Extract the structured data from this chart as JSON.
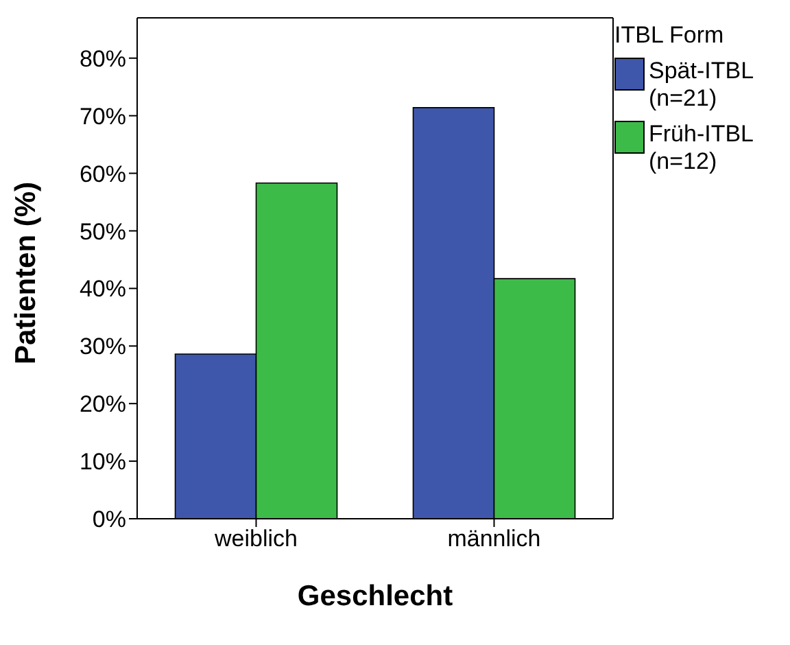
{
  "chart_data": {
    "type": "bar",
    "xlabel": "Geschlecht",
    "ylabel": "Patienten (%)",
    "legend_title": "ITBL Form",
    "categories": [
      "weiblich",
      "männlich"
    ],
    "series": [
      {
        "name": "Spät-ITBL (n=21)",
        "color": "#3f57ab",
        "values": [
          28.6,
          71.4
        ]
      },
      {
        "name": "Früh-ITBL (n=12)",
        "color": "#3dbb49",
        "values": [
          58.3,
          41.7
        ]
      }
    ],
    "ylim": [
      0,
      87
    ],
    "yticks": [
      {
        "value": 0,
        "label": "0%"
      },
      {
        "value": 10,
        "label": "10%"
      },
      {
        "value": 20,
        "label": "20%"
      },
      {
        "value": 30,
        "label": "30%"
      },
      {
        "value": 40,
        "label": "40%"
      },
      {
        "value": 50,
        "label": "50%"
      },
      {
        "value": 60,
        "label": "60%"
      },
      {
        "value": 70,
        "label": "70%"
      },
      {
        "value": 80,
        "label": "80%"
      }
    ],
    "grid": false,
    "legend": "top right"
  }
}
